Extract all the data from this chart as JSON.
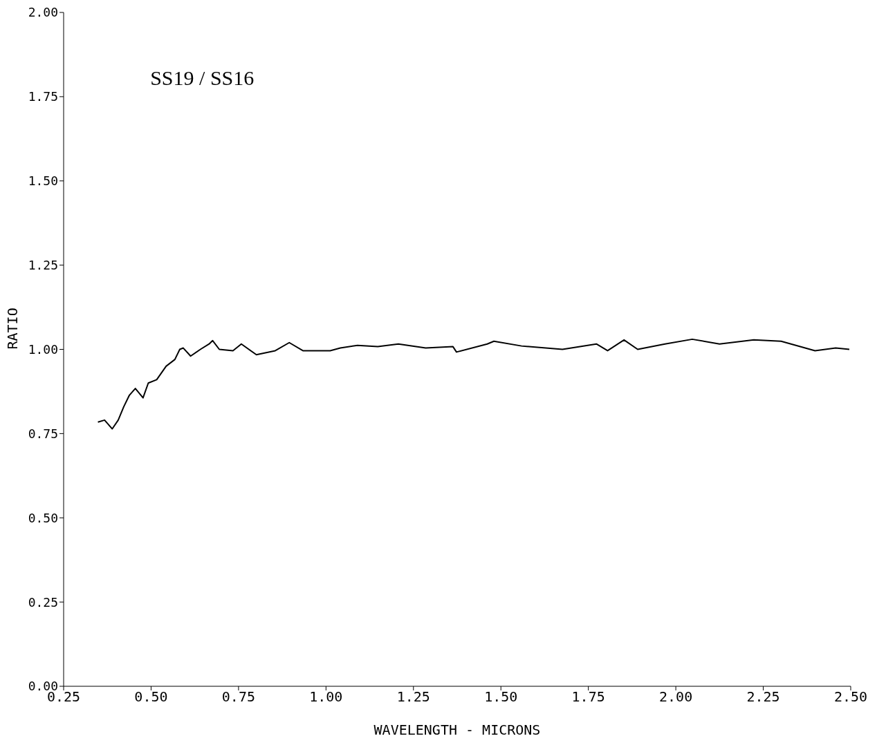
{
  "chart_data": {
    "type": "line",
    "xlabel": "WAVELENGTH - MICRONS",
    "ylabel": "RATIO",
    "annotations": [
      "SS19 / SS16"
    ],
    "xlim": [
      0.25,
      2.5
    ],
    "ylim": [
      0,
      2
    ],
    "xticks": [
      {
        "value": 0.25,
        "label": "0.25"
      },
      {
        "value": 0.5,
        "label": "0.50"
      },
      {
        "value": 0.75,
        "label": "0.75"
      },
      {
        "value": 1,
        "label": "1.00"
      },
      {
        "value": 1.25,
        "label": "1.25"
      },
      {
        "value": 1.5,
        "label": "1.50"
      },
      {
        "value": 1.75,
        "label": "1.75"
      },
      {
        "value": 2,
        "label": "2.00"
      },
      {
        "value": 2.25,
        "label": "2.25"
      },
      {
        "value": 2.5,
        "label": "2.50"
      }
    ],
    "yticks": [
      {
        "value": 0,
        "label": "0.00"
      },
      {
        "value": 0.25,
        "label": "0.25"
      },
      {
        "value": 0.5,
        "label": "0.50"
      },
      {
        "value": 0.75,
        "label": "0.75"
      },
      {
        "value": 1,
        "label": "1.00"
      },
      {
        "value": 1.25,
        "label": "1.25"
      },
      {
        "value": 1.5,
        "label": "1.50"
      },
      {
        "value": 1.75,
        "label": "1.75"
      },
      {
        "value": 2,
        "label": "2.00"
      }
    ],
    "grid": false,
    "legend": false,
    "marker": "none",
    "line_style": "solid",
    "series": [
      {
        "color": "#000000",
        "x": [
          0.348,
          0.367,
          0.389,
          0.406,
          0.422,
          0.438,
          0.455,
          0.477,
          0.492,
          0.516,
          0.543,
          0.568,
          0.582,
          0.592,
          0.613,
          0.641,
          0.666,
          0.676,
          0.695,
          0.734,
          0.758,
          0.801,
          0.855,
          0.895,
          0.934,
          0.973,
          1.012,
          1.041,
          1.09,
          1.148,
          1.207,
          1.285,
          1.363,
          1.373,
          1.461,
          1.48,
          1.559,
          1.676,
          1.773,
          1.805,
          1.852,
          1.891,
          1.969,
          2.047,
          2.125,
          2.223,
          2.301,
          2.398,
          2.457,
          2.496
        ],
        "values": [
          0.784,
          0.79,
          0.764,
          0.79,
          0.83,
          0.864,
          0.884,
          0.856,
          0.9,
          0.91,
          0.95,
          0.97,
          1.0,
          1.004,
          0.98,
          1.0,
          1.016,
          1.026,
          1.0,
          0.996,
          1.016,
          0.984,
          0.996,
          1.02,
          0.996,
          0.996,
          0.996,
          1.004,
          1.012,
          1.008,
          1.016,
          1.004,
          1.008,
          0.992,
          1.016,
          1.024,
          1.01,
          1.0,
          1.016,
          0.996,
          1.028,
          1.0,
          1.016,
          1.03,
          1.016,
          1.028,
          1.024,
          0.996,
          1.004,
          1.0
        ]
      }
    ]
  }
}
